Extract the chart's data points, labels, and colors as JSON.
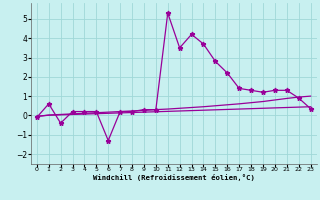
{
  "xlabel": "Windchill (Refroidissement éolien,°C)",
  "background_color": "#c8f0f0",
  "grid_color": "#a0d8d8",
  "line_color": "#990099",
  "x_values": [
    0,
    1,
    2,
    3,
    4,
    5,
    6,
    7,
    8,
    9,
    10,
    11,
    12,
    13,
    14,
    15,
    16,
    17,
    18,
    19,
    20,
    21,
    22,
    23
  ],
  "series1": [
    -0.1,
    0.6,
    -0.4,
    0.2,
    0.2,
    0.2,
    -1.3,
    0.2,
    0.2,
    0.3,
    0.3,
    5.3,
    3.5,
    4.2,
    3.7,
    2.8,
    2.2,
    1.4,
    1.3,
    1.2,
    1.3,
    1.3,
    0.9,
    0.35
  ],
  "series2": [
    -0.05,
    0.02,
    0.05,
    0.08,
    0.11,
    0.14,
    0.17,
    0.2,
    0.23,
    0.26,
    0.3,
    0.33,
    0.37,
    0.41,
    0.45,
    0.5,
    0.55,
    0.6,
    0.66,
    0.72,
    0.8,
    0.88,
    0.95,
    1.0
  ],
  "series3": [
    -0.05,
    0.01,
    0.03,
    0.05,
    0.07,
    0.09,
    0.11,
    0.13,
    0.15,
    0.17,
    0.19,
    0.21,
    0.23,
    0.25,
    0.27,
    0.29,
    0.31,
    0.33,
    0.35,
    0.37,
    0.39,
    0.41,
    0.43,
    0.45
  ],
  "ylim": [
    -2.5,
    5.8
  ],
  "xlim": [
    -0.5,
    23.5
  ],
  "yticks": [
    -2,
    -1,
    0,
    1,
    2,
    3,
    4,
    5
  ],
  "xticks": [
    0,
    1,
    2,
    3,
    4,
    5,
    6,
    7,
    8,
    9,
    10,
    11,
    12,
    13,
    14,
    15,
    16,
    17,
    18,
    19,
    20,
    21,
    22,
    23
  ]
}
